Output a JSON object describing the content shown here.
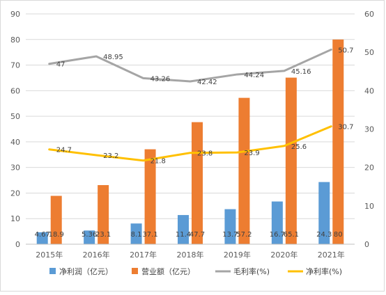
{
  "chart_data": {
    "type": "bar",
    "categories": [
      "2015年",
      "2016年",
      "2017年",
      "2018年",
      "2019年",
      "2020年",
      "2021年"
    ],
    "series": [
      {
        "name": "净利润（亿元）",
        "kind": "bar",
        "axis": "left",
        "color": "#5b9bd5",
        "values": [
          4.67,
          5.36,
          8.1,
          11.4,
          13.7,
          16.7,
          24.3
        ],
        "labels": [
          "4.67",
          "5.36",
          "8.1",
          "11.4",
          "13.7",
          "16.7",
          "24.3"
        ]
      },
      {
        "name": "营业额（亿元）",
        "kind": "bar",
        "axis": "left",
        "color": "#ed7d31",
        "values": [
          18.9,
          23.1,
          37.1,
          47.7,
          57.2,
          65.1,
          80
        ],
        "labels": [
          "18.9",
          "23.1",
          "37.1",
          "47.7",
          "57.2",
          "65.1",
          "80"
        ]
      },
      {
        "name": "毛利率(%)",
        "kind": "line",
        "axis": "right",
        "color": "#a5a5a5",
        "values": [
          47,
          48.95,
          43.26,
          42.42,
          44.24,
          45.16,
          50.7
        ],
        "labels": [
          "47",
          "48.95",
          "43.26",
          "42.42",
          "44.24",
          "45.16",
          "50.7"
        ]
      },
      {
        "name": "净利率(%)",
        "kind": "line",
        "axis": "right",
        "color": "#ffc000",
        "values": [
          24.7,
          23.2,
          21.8,
          23.8,
          23.9,
          25.6,
          30.7
        ],
        "labels": [
          "24.7",
          "23.2",
          "21.8",
          "23.8",
          "23.9",
          "25.6",
          "30.7"
        ]
      }
    ],
    "y_left": {
      "min": 0,
      "max": 90,
      "ticks": [
        0,
        10,
        20,
        30,
        40,
        50,
        60,
        70,
        80,
        90
      ]
    },
    "y_right": {
      "min": 0,
      "max": 60,
      "ticks": [
        0,
        10,
        20,
        30,
        40,
        50,
        60
      ]
    },
    "grid": true,
    "legend_position": "bottom"
  }
}
